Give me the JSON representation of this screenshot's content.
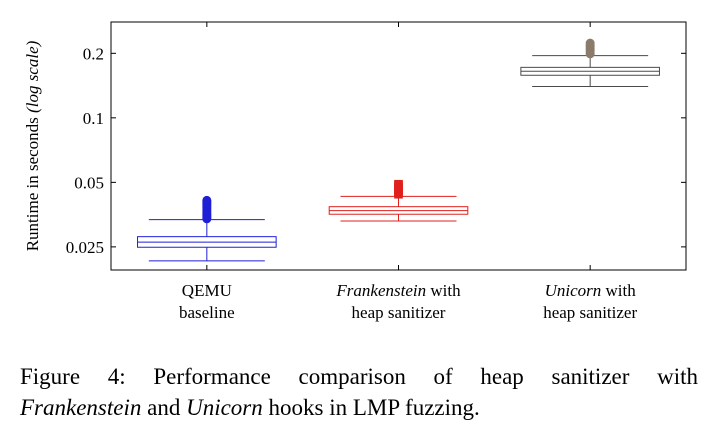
{
  "chart_data": {
    "type": "box",
    "ylabel": "Runtime in seconds",
    "ylabel_note": "(log scale)",
    "yscale": "log",
    "ylim": [
      0.0195,
      0.28
    ],
    "yticks": [
      0.025,
      0.05,
      0.1,
      0.2
    ],
    "ytick_labels": [
      "0.025",
      "0.05",
      "0.1",
      "0.2"
    ],
    "grid": false,
    "categories": [
      {
        "italic": "",
        "line1": "QEMU",
        "line2": "baseline"
      },
      {
        "italic": "Frankenstein",
        "line1": " with",
        "line2": "heap sanitizer"
      },
      {
        "italic": "Unicorn",
        "line1": " with",
        "line2": "heap sanitizer"
      }
    ],
    "boxes": [
      {
        "whisker_low": 0.0215,
        "q1": 0.0249,
        "median": 0.0263,
        "q3": 0.0279,
        "whisker_high": 0.0335,
        "outliers": [
          0.0338,
          0.0343,
          0.0348,
          0.0353,
          0.0358,
          0.0364,
          0.037,
          0.0376,
          0.0382,
          0.0388,
          0.0394,
          0.04,
          0.0406,
          0.0412
        ],
        "color": "#1f1fd6",
        "marker": "circle"
      },
      {
        "whisker_low": 0.033,
        "q1": 0.0355,
        "median": 0.0369,
        "q3": 0.0385,
        "whisker_high": 0.043,
        "outliers": [
          0.044,
          0.0447,
          0.0454,
          0.0461,
          0.0468,
          0.0475,
          0.0482,
          0.049
        ],
        "color": "#e0201d",
        "marker": "square"
      },
      {
        "whisker_low": 0.14,
        "q1": 0.158,
        "median": 0.165,
        "q3": 0.172,
        "whisker_high": 0.195,
        "outliers": [
          0.199,
          0.203,
          0.207,
          0.211,
          0.215,
          0.219,
          0.223
        ],
        "color": "#8a7b6a",
        "marker": "circle",
        "line_color": "#4a4a4a"
      }
    ]
  },
  "caption": {
    "line1": "Figure 4: Performance comparison of heap sanitizer with",
    "italic_a": "Frankenstein",
    "mid": " and ",
    "italic_b": "Unicorn",
    "end": " hooks in LMP fuzzing."
  }
}
